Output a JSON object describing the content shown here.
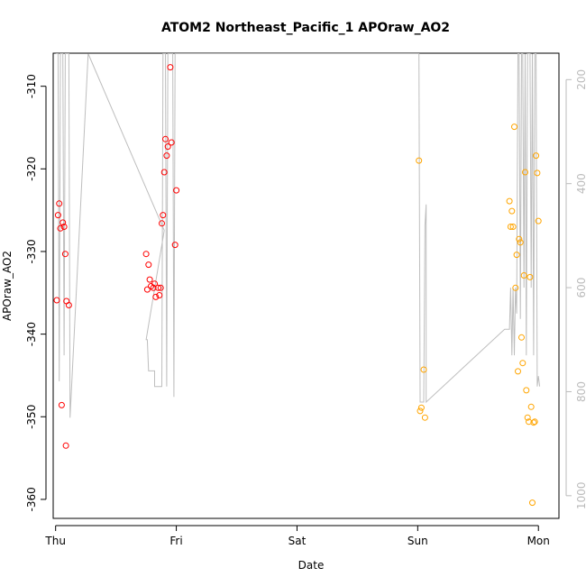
{
  "chart_data": {
    "type": "scatter",
    "title": "ATOM2 Northeast_Pacific_1 APOraw_AO2",
    "xlabel": "Date",
    "ylabel": "APOraw_AO2",
    "x_unit": "day",
    "xlim": [
      -0.02,
      4.17
    ],
    "ylim": [
      -362.3,
      -306.0
    ],
    "x_ticks": [
      {
        "value": 0,
        "label": "Thu"
      },
      {
        "value": 1,
        "label": "Fri"
      },
      {
        "value": 2,
        "label": "Sat"
      },
      {
        "value": 3,
        "label": "Sun"
      },
      {
        "value": 4,
        "label": "Mon"
      }
    ],
    "y_ticks": [
      -310,
      -320,
      -330,
      -340,
      -350,
      -360
    ],
    "y2_ticks": [
      200,
      400,
      600,
      800,
      1000
    ],
    "y2lim": [
      1043.6,
      149.2
    ],
    "grid": false,
    "colors": {
      "series_red": "#ff0000",
      "series_orange": "#ffa500",
      "line": "#bebebe",
      "right_axis": "#bbbbbb"
    },
    "series": [
      {
        "color": "#ff0000",
        "points": [
          [
            0.01,
            -335.9
          ],
          [
            0.02,
            -325.6
          ],
          [
            0.03,
            -324.2
          ],
          [
            0.04,
            -327.2
          ],
          [
            0.05,
            -348.6
          ],
          [
            0.06,
            -326.5
          ],
          [
            0.07,
            -327.0
          ],
          [
            0.08,
            -330.3
          ],
          [
            0.085,
            -353.5
          ],
          [
            0.09,
            -336.0
          ],
          [
            0.11,
            -336.5
          ],
          [
            0.75,
            -330.3
          ],
          [
            0.76,
            -334.6
          ],
          [
            0.77,
            -331.6
          ],
          [
            0.78,
            -333.4
          ],
          [
            0.79,
            -334.2
          ],
          [
            0.81,
            -334.4
          ],
          [
            0.82,
            -333.9
          ],
          [
            0.83,
            -335.5
          ],
          [
            0.85,
            -334.4
          ],
          [
            0.86,
            -335.3
          ],
          [
            0.87,
            -334.4
          ],
          [
            0.88,
            -326.6
          ],
          [
            0.89,
            -325.6
          ],
          [
            0.9,
            -320.4
          ],
          [
            0.91,
            -316.4
          ],
          [
            0.92,
            -318.4
          ],
          [
            0.93,
            -317.3
          ],
          [
            0.95,
            -307.7
          ],
          [
            0.96,
            -316.8
          ],
          [
            0.99,
            -329.2
          ],
          [
            1.0,
            -322.6
          ]
        ]
      },
      {
        "color": "#ffa500",
        "points": [
          [
            3.01,
            -319.0
          ],
          [
            3.02,
            -349.3
          ],
          [
            3.03,
            -348.9
          ],
          [
            3.05,
            -344.3
          ],
          [
            3.06,
            -350.1
          ],
          [
            3.76,
            -323.9
          ],
          [
            3.77,
            -327.0
          ],
          [
            3.78,
            -325.1
          ],
          [
            3.79,
            -327.0
          ],
          [
            3.8,
            -314.9
          ],
          [
            3.81,
            -334.4
          ],
          [
            3.82,
            -330.4
          ],
          [
            3.83,
            -344.5
          ],
          [
            3.84,
            -328.5
          ],
          [
            3.85,
            -328.9
          ],
          [
            3.86,
            -340.4
          ],
          [
            3.87,
            -343.5
          ],
          [
            3.88,
            -332.9
          ],
          [
            3.89,
            -320.4
          ],
          [
            3.9,
            -346.8
          ],
          [
            3.91,
            -350.1
          ],
          [
            3.92,
            -350.6
          ],
          [
            3.93,
            -333.1
          ],
          [
            3.94,
            -348.8
          ],
          [
            3.95,
            -360.4
          ],
          [
            3.96,
            -350.7
          ],
          [
            3.97,
            -350.6
          ],
          [
            3.98,
            -318.4
          ],
          [
            3.99,
            -320.5
          ],
          [
            4.0,
            -326.3
          ]
        ]
      }
    ],
    "line_series": {
      "axis": "right",
      "color": "#bebebe",
      "points": [
        [
          0.0,
          150
        ],
        [
          0.02,
          150
        ],
        [
          0.03,
          780
        ],
        [
          0.04,
          150
        ],
        [
          0.06,
          150
        ],
        [
          0.07,
          730
        ],
        [
          0.08,
          150
        ],
        [
          0.11,
          150
        ],
        [
          0.12,
          850
        ],
        [
          0.27,
          150
        ],
        [
          0.9,
          490
        ],
        [
          0.75,
          700
        ],
        [
          0.76,
          700
        ],
        [
          0.77,
          760
        ],
        [
          0.8,
          760
        ],
        [
          0.82,
          760
        ],
        [
          0.82,
          790
        ],
        [
          0.88,
          790
        ],
        [
          0.89,
          150
        ],
        [
          0.91,
          150
        ],
        [
          0.92,
          790
        ],
        [
          0.93,
          150
        ],
        [
          0.96,
          150
        ],
        [
          0.97,
          150
        ],
        [
          0.98,
          810
        ],
        [
          0.99,
          150
        ],
        [
          1.0,
          150
        ],
        [
          3.0,
          150
        ],
        [
          3.01,
          150
        ],
        [
          3.02,
          820
        ],
        [
          3.05,
          820
        ],
        [
          3.06,
          480
        ],
        [
          3.07,
          440
        ],
        [
          3.07,
          820
        ],
        [
          3.72,
          680
        ],
        [
          3.76,
          680
        ],
        [
          3.77,
          600
        ],
        [
          3.78,
          730
        ],
        [
          3.79,
          600
        ],
        [
          3.8,
          730
        ],
        [
          3.81,
          600
        ],
        [
          3.82,
          650
        ],
        [
          3.83,
          150
        ],
        [
          3.84,
          150
        ],
        [
          3.85,
          660
        ],
        [
          3.86,
          150
        ],
        [
          3.87,
          150
        ],
        [
          3.88,
          600
        ],
        [
          3.89,
          150
        ],
        [
          3.9,
          730
        ],
        [
          3.91,
          150
        ],
        [
          3.93,
          150
        ],
        [
          3.94,
          600
        ],
        [
          3.95,
          150
        ],
        [
          3.96,
          730
        ],
        [
          3.97,
          150
        ],
        [
          3.98,
          150
        ],
        [
          3.99,
          790
        ],
        [
          4.0,
          770
        ],
        [
          4.01,
          790
        ]
      ]
    }
  }
}
